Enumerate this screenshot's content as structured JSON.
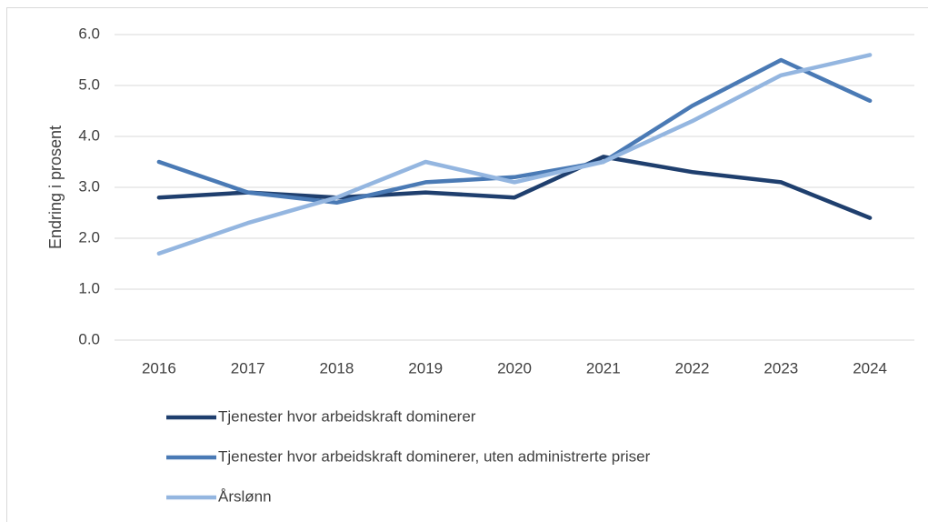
{
  "chart_data": {
    "type": "line",
    "y_label": "Endring i prosent",
    "categories": [
      "2016",
      "2017",
      "2018",
      "2019",
      "2020",
      "2021",
      "2022",
      "2023",
      "2024"
    ],
    "series": [
      {
        "name": "Tjenester hvor arbeidskraft dominerer",
        "color": "#1f3f6e",
        "values": [
          2.8,
          2.9,
          2.8,
          2.9,
          2.8,
          3.6,
          3.3,
          3.1,
          2.4
        ]
      },
      {
        "name": "Tjenester hvor arbeidskraft dominerer, uten administrerte priser",
        "color": "#4a7ab5",
        "values": [
          3.5,
          2.9,
          2.7,
          3.1,
          3.2,
          3.5,
          4.6,
          5.5,
          4.7
        ]
      },
      {
        "name": "Årslønn",
        "color": "#94b6e0",
        "values": [
          1.7,
          2.3,
          2.8,
          3.5,
          3.1,
          3.5,
          4.3,
          5.2,
          5.6
        ]
      }
    ],
    "ylim": [
      0,
      6
    ],
    "yticks": [
      {
        "value": 0,
        "label": "0.0"
      },
      {
        "value": 1,
        "label": "1.0"
      },
      {
        "value": 2,
        "label": "2.0"
      },
      {
        "value": 3,
        "label": "3.0"
      },
      {
        "value": 4,
        "label": "4.0"
      },
      {
        "value": 5,
        "label": "5.0"
      },
      {
        "value": 6,
        "label": "6.0"
      }
    ],
    "grid": true,
    "legend": "bottom"
  }
}
